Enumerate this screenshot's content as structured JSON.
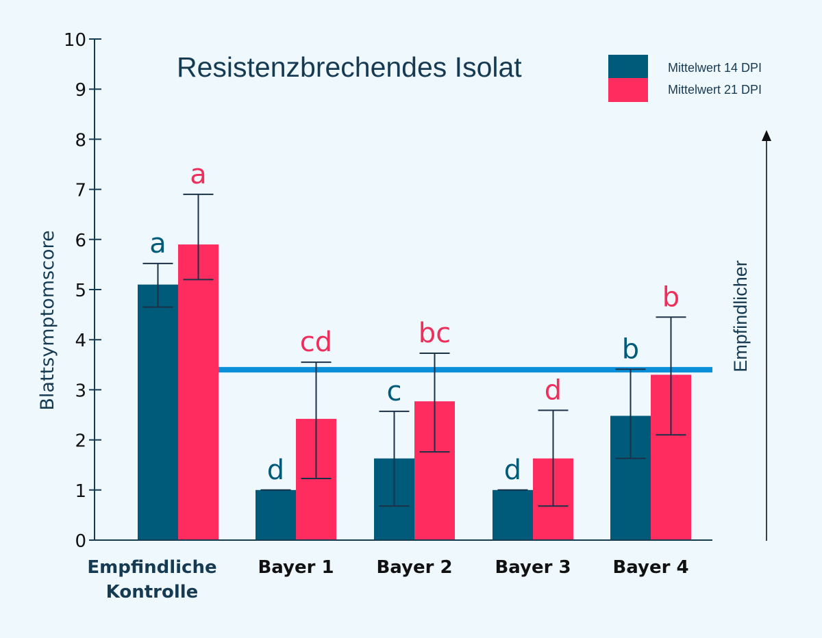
{
  "chart_data": {
    "type": "bar",
    "title": "Resistenzbrechendes Isolat",
    "xlabel": "",
    "ylabel": "Blattsymptomscore",
    "ylim": [
      0,
      10
    ],
    "yticks": [
      0,
      1,
      2,
      3,
      4,
      5,
      6,
      7,
      8,
      9,
      10
    ],
    "grid": false,
    "legend_position": "top-right",
    "categories": [
      "Empfindliche Kontrolle",
      "Bayer 1",
      "Bayer 2",
      "Bayer 3",
      "Bayer 4"
    ],
    "category_lines": [
      [
        "Empfindliche",
        "Kontrolle"
      ],
      [
        "Bayer 1"
      ],
      [
        "Bayer 2"
      ],
      [
        "Bayer 3"
      ],
      [
        "Bayer 4"
      ]
    ],
    "series": [
      {
        "name": "Mittelwert 14 DPI",
        "color": "#005b7a",
        "label_color": "#005b7a",
        "values": [
          5.1,
          1.0,
          1.63,
          1.0,
          2.48
        ],
        "error_low": [
          4.65,
          1.0,
          0.68,
          1.0,
          1.63
        ],
        "error_high": [
          5.52,
          1.0,
          2.57,
          1.0,
          3.41
        ],
        "significance": [
          "a",
          "d",
          "c",
          "d",
          "b"
        ]
      },
      {
        "name": "Mittelwert 21 DPI",
        "color": "#ff2d5f",
        "label_color": "#ee2f5c",
        "values": [
          5.9,
          2.42,
          2.77,
          1.63,
          3.3
        ],
        "error_low": [
          5.2,
          1.23,
          1.76,
          0.68,
          2.1
        ],
        "error_high": [
          6.9,
          3.55,
          3.73,
          2.59,
          4.45
        ],
        "significance": [
          "a",
          "cd",
          "bc",
          "d",
          "b"
        ]
      }
    ],
    "reference_line": {
      "value": 3.4,
      "color": "#0a8fd8",
      "from_category": "Empfindliche Kontrolle"
    },
    "annotation": {
      "text": "Empfindlicher",
      "direction": "up"
    }
  }
}
